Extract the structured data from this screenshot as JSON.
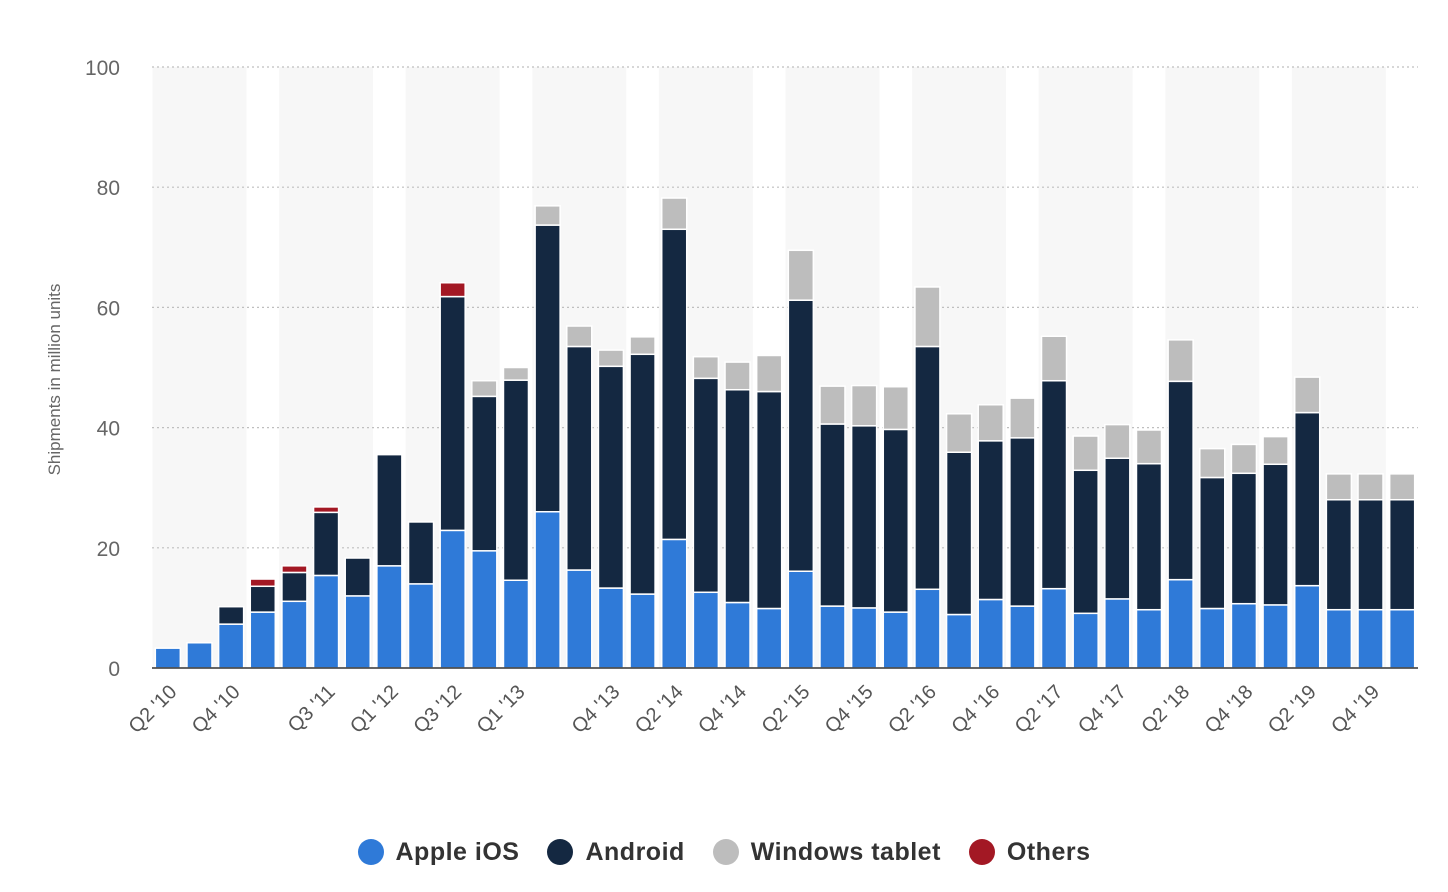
{
  "chart_data": {
    "type": "bar",
    "stacked": true,
    "ylabel": "Shipments in million units",
    "xlabel": "",
    "ylim": [
      0,
      100
    ],
    "yticks": [
      0,
      20,
      40,
      60,
      80,
      100
    ],
    "legend_position": "bottom",
    "categories": [
      "Q2 '10",
      "Q3 '10",
      "Q4 '10",
      "Q1 '11",
      "Q2 '11",
      "Q3 '11",
      "Q4 '11",
      "Q1 '12",
      "Q2 '12",
      "Q3 '12",
      "Q4 '12",
      "Q1 '13",
      "Q2 '13",
      "Q3 '13",
      "Q4 '13",
      "Q1 '14",
      "Q2 '14",
      "Q3 '14",
      "Q4 '14",
      "Q1 '15",
      "Q2 '15",
      "Q3 '15",
      "Q4 '15",
      "Q1 '16",
      "Q2 '16",
      "Q3 '16",
      "Q4 '16",
      "Q1 '17",
      "Q2 '17",
      "Q3 '17",
      "Q4 '17",
      "Q1 '18",
      "Q2 '18",
      "Q3 '18",
      "Q4 '18",
      "Q1 '19",
      "Q2 '19",
      "Q3 '19",
      "Q4 '19",
      "Q1 '20"
    ],
    "tick_labels": [
      "Q2 '10",
      "Q4 '10",
      "Q3 '11",
      "Q1 '12",
      "Q3 '12",
      "Q1 '13",
      "Q4 '13",
      "Q2 '14",
      "Q4 '14",
      "Q2 '15",
      "Q4 '15",
      "Q2 '16",
      "Q4 '16",
      "Q2 '17",
      "Q4 '17",
      "Q2 '18",
      "Q4 '18",
      "Q2 '19",
      "Q4 '19"
    ],
    "series": [
      {
        "name": "Apple iOS",
        "color": "#2f7ad8",
        "values": [
          3.3,
          4.2,
          7.3,
          9.3,
          11.1,
          15.4,
          12,
          17,
          14,
          22.9,
          19.5,
          14.6,
          26,
          16.3,
          13.3,
          12.3,
          21.4,
          12.6,
          10.9,
          9.9,
          16.1,
          10.3,
          10,
          9.3,
          13.1,
          8.9,
          11.4,
          10.3,
          13.2,
          9.1,
          11.5,
          9.7,
          14.7,
          9.9,
          10.7,
          10.5,
          13.7,
          9.7,
          9.7,
          9.7
        ]
      },
      {
        "name": "Android",
        "color": "#142841",
        "values": [
          0,
          0,
          2.9,
          4.3,
          4.8,
          10.5,
          6.3,
          18.5,
          10.3,
          38.9,
          25.7,
          33.3,
          47.7,
          37.2,
          36.9,
          39.9,
          51.6,
          35.6,
          35.4,
          36.1,
          45.1,
          30.3,
          30.3,
          30.4,
          40.4,
          27,
          26.4,
          28,
          34.6,
          23.8,
          23.4,
          24.3,
          33,
          21.8,
          21.7,
          23.4,
          28.8,
          18.3,
          18.3,
          18.3
        ]
      },
      {
        "name": "Windows tablet",
        "color": "#bdbdbd",
        "values": [
          0,
          0,
          0,
          0,
          0,
          0,
          0,
          0,
          0,
          0,
          2.6,
          2.1,
          3.2,
          3.4,
          2.7,
          2.9,
          5.2,
          3.6,
          4.6,
          6,
          8.3,
          6.3,
          6.7,
          7.1,
          9.9,
          6.4,
          6,
          6.6,
          7.4,
          5.7,
          5.6,
          5.6,
          6.9,
          4.8,
          4.8,
          4.6,
          5.9,
          4.3,
          4.3,
          4.3
        ]
      },
      {
        "name": "Others",
        "color": "#a31824",
        "values": [
          0,
          0,
          0,
          1.2,
          1.1,
          0.9,
          0,
          0,
          0,
          2.3,
          0,
          0,
          0,
          0,
          0,
          0,
          0,
          0,
          0,
          0,
          0,
          0,
          0,
          0,
          0,
          0,
          0,
          0,
          0,
          0,
          0,
          0,
          0,
          0,
          0,
          0,
          0,
          0,
          0,
          0
        ]
      }
    ]
  }
}
